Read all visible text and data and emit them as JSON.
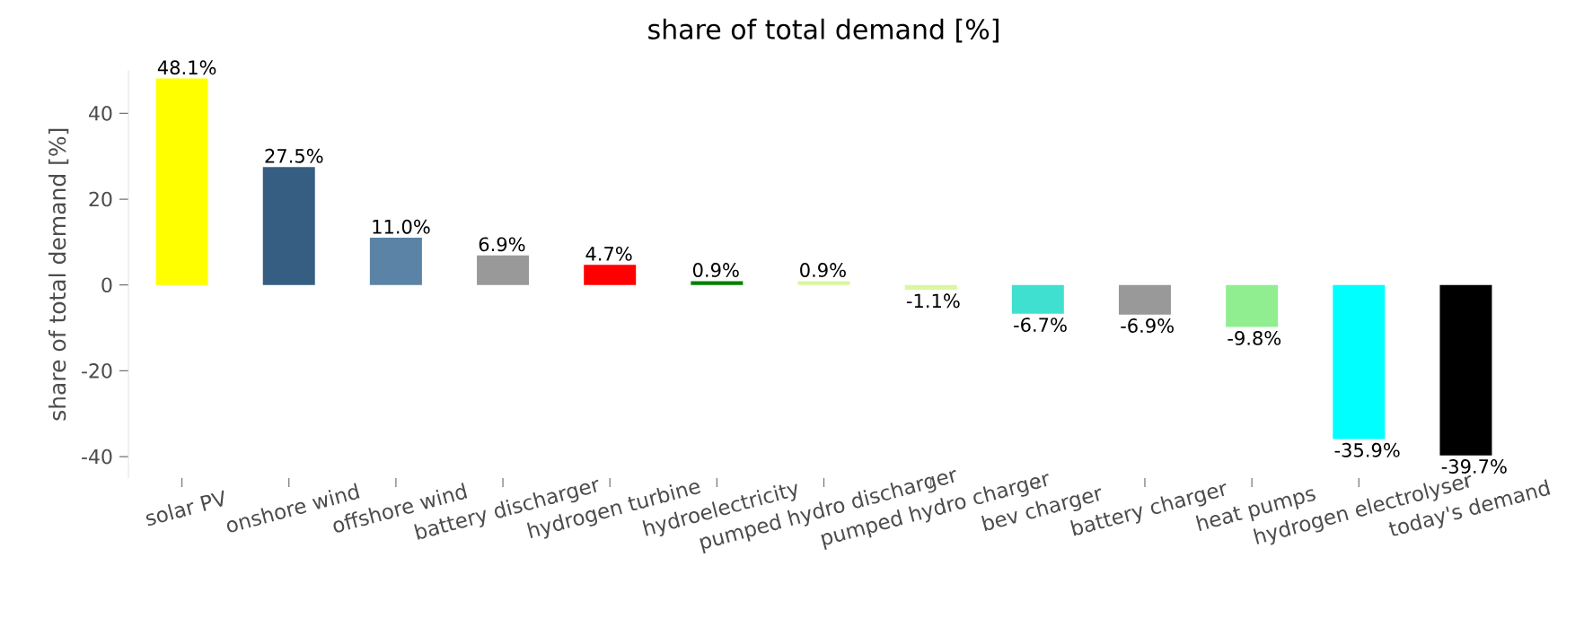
{
  "chart_data": {
    "type": "bar",
    "title": "share of total demand [%]",
    "ylabel": "share of total demand [%]",
    "categories": [
      "solar PV",
      "onshore wind",
      "offshore wind",
      "battery discharger",
      "hydrogen turbine",
      "hydroelectricity",
      "pumped hydro discharger",
      "pumped hydro charger",
      "bev charger",
      "battery charger",
      "heat pumps",
      "hydrogen electrolyser",
      "today's demand"
    ],
    "values": [
      48.1,
      27.5,
      11.0,
      6.9,
      4.7,
      0.9,
      0.9,
      -1.1,
      -6.7,
      -6.9,
      -9.8,
      -35.9,
      -39.7
    ],
    "value_labels": [
      "48.1%",
      "27.5%",
      "11.0%",
      "6.9%",
      "4.7%",
      "0.9%",
      "0.9%",
      "-1.1%",
      "-6.7%",
      "-6.9%",
      "-9.8%",
      "-35.9%",
      "-39.7%"
    ],
    "colors": [
      "#ffff00",
      "#355e82",
      "#5b83a6",
      "#999999",
      "#ff0000",
      "#008000",
      "#d9f7a0",
      "#d9f7a0",
      "#40e0d0",
      "#999999",
      "#90ee90",
      "#00ffff",
      "#000000"
    ],
    "ylim": [
      -45,
      50
    ],
    "yticks": [
      -40,
      -20,
      0,
      20,
      40
    ],
    "grid": false
  }
}
